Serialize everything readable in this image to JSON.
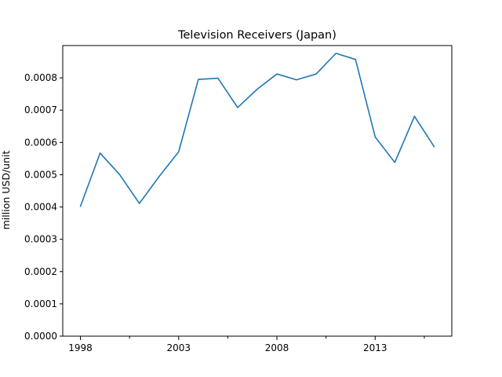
{
  "chart_data": {
    "type": "line",
    "title": "Television Receivers (Japan)",
    "xlabel": "",
    "ylabel": "million USD/unit",
    "x": [
      1998,
      1999,
      2000,
      2001,
      2002,
      2003,
      2004,
      2005,
      2006,
      2007,
      2008,
      2009,
      2010,
      2011,
      2012,
      2013,
      2014,
      2015,
      2016
    ],
    "series": [
      {
        "color": "#1f77b4",
        "values": [
          0.000402,
          0.000567,
          0.0005,
          0.000411,
          0.000494,
          0.000571,
          0.000795,
          0.000799,
          0.000708,
          0.000765,
          0.000812,
          0.000794,
          0.000812,
          0.000876,
          0.000857,
          0.000617,
          0.000538,
          0.000681,
          0.000587
        ]
      }
    ],
    "xlim": [
      1997.1,
      2016.9
    ],
    "ylim": [
      0,
      0.0009
    ],
    "xticks": [
      1998,
      2003,
      2008,
      2013
    ],
    "xminor_ticks": [
      2000.5,
      2005.5,
      2010.5,
      2015.5
    ],
    "yticks": [
      "0.0000",
      "0.0001",
      "0.0002",
      "0.0003",
      "0.0004",
      "0.0005",
      "0.0006",
      "0.0007",
      "0.0008"
    ],
    "grid": false,
    "legend": "none"
  }
}
